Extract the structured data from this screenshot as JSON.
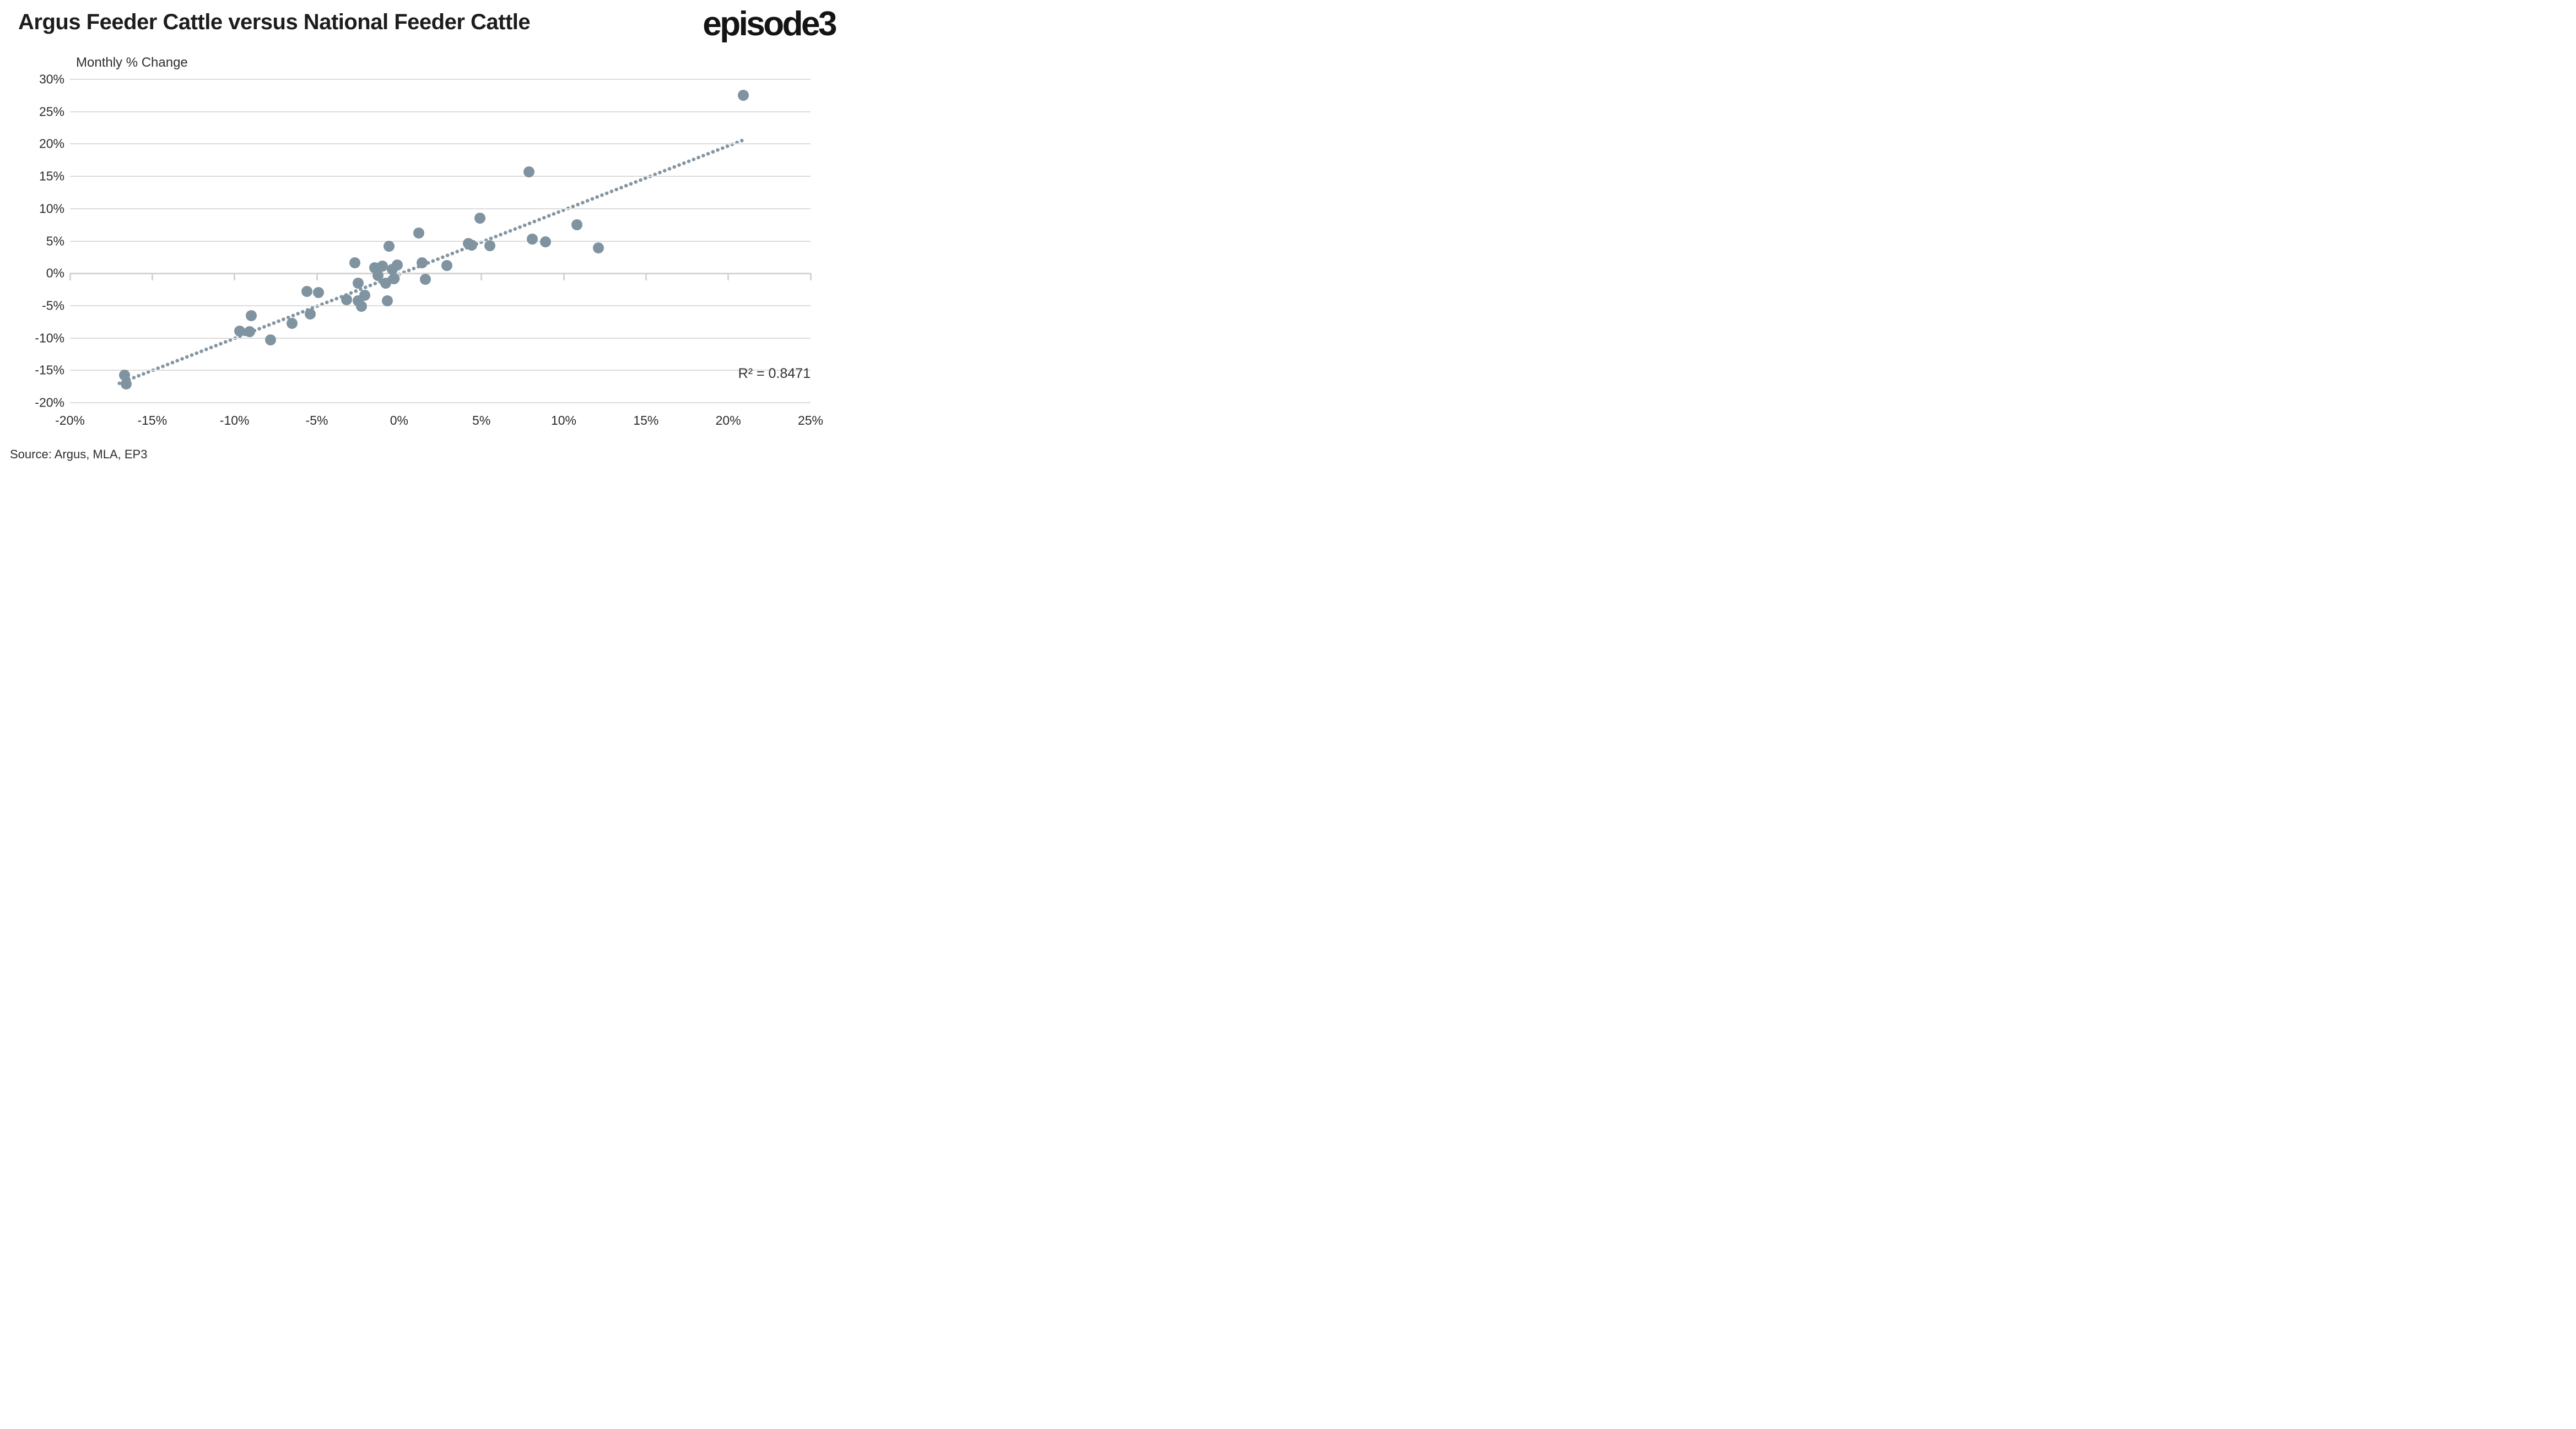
{
  "header": {
    "logo": "episode3"
  },
  "chart_data": {
    "type": "scatter",
    "title": "Argus Feeder Cattle versus National Feeder Cattle",
    "axis_label": "Monthly % Change",
    "source": "Source: Argus, MLA, EP3",
    "annotation": "R² = 0.8471",
    "xlim": [
      -20,
      25
    ],
    "ylim": [
      -20,
      30
    ],
    "grid": "horizontal-only",
    "point_color": "#8093a0",
    "trend_color": "#8496a3",
    "grid_color": "#dcdcdc",
    "axis_line_color": "#d4d4d4",
    "x_ticks": [
      {
        "label": "-20%",
        "value": -20
      },
      {
        "label": "-15%",
        "value": -15
      },
      {
        "label": "-10%",
        "value": -10
      },
      {
        "label": "-5%",
        "value": -5
      },
      {
        "label": "0%",
        "value": 0
      },
      {
        "label": "5%",
        "value": 5
      },
      {
        "label": "10%",
        "value": 10
      },
      {
        "label": "15%",
        "value": 15
      },
      {
        "label": "20%",
        "value": 20
      },
      {
        "label": "25%",
        "value": 25
      }
    ],
    "y_ticks": [
      {
        "label": "30%",
        "value": 30
      },
      {
        "label": "25%",
        "value": 25
      },
      {
        "label": "20%",
        "value": 20
      },
      {
        "label": "15%",
        "value": 15
      },
      {
        "label": "10%",
        "value": 10
      },
      {
        "label": "5%",
        "value": 5
      },
      {
        "label": "0%",
        "value": 0
      },
      {
        "label": "-5%",
        "value": -5
      },
      {
        "label": "-10%",
        "value": -10
      },
      {
        "label": "-15%",
        "value": -15
      },
      {
        "label": "-20%",
        "value": -20
      }
    ],
    "points": [
      [
        -16.7,
        -15.7
      ],
      [
        -16.6,
        -17.1
      ],
      [
        -9.7,
        -8.9
      ],
      [
        -9.1,
        -9.0
      ],
      [
        -9.0,
        -6.5
      ],
      [
        -7.8,
        -10.3
      ],
      [
        -6.5,
        -7.7
      ],
      [
        -5.6,
        -2.8
      ],
      [
        -5.4,
        -6.3
      ],
      [
        -4.9,
        -3.0
      ],
      [
        -3.2,
        -4.1
      ],
      [
        -2.7,
        1.6
      ],
      [
        -2.5,
        -4.2
      ],
      [
        -2.5,
        -1.5
      ],
      [
        -2.3,
        -5.1
      ],
      [
        -2.1,
        -3.4
      ],
      [
        -1.5,
        0.9
      ],
      [
        -1.3,
        -0.3
      ],
      [
        -1.0,
        1.1
      ],
      [
        -0.8,
        -1.5
      ],
      [
        -0.7,
        -4.2
      ],
      [
        -0.6,
        4.2
      ],
      [
        -0.4,
        0.6
      ],
      [
        -0.3,
        -0.8
      ],
      [
        -0.1,
        1.3
      ],
      [
        1.2,
        6.2
      ],
      [
        1.4,
        1.6
      ],
      [
        1.6,
        -0.9
      ],
      [
        2.9,
        1.2
      ],
      [
        4.2,
        4.6
      ],
      [
        4.4,
        4.4
      ],
      [
        4.9,
        8.5
      ],
      [
        5.5,
        4.3
      ],
      [
        7.9,
        15.7
      ],
      [
        8.1,
        5.3
      ],
      [
        8.9,
        4.9
      ],
      [
        10.8,
        7.5
      ],
      [
        12.1,
        3.9
      ],
      [
        20.9,
        27.5
      ]
    ],
    "trendline": {
      "x1": -17.0,
      "y1": -17.0,
      "x2": 21.0,
      "y2": 20.7
    }
  }
}
